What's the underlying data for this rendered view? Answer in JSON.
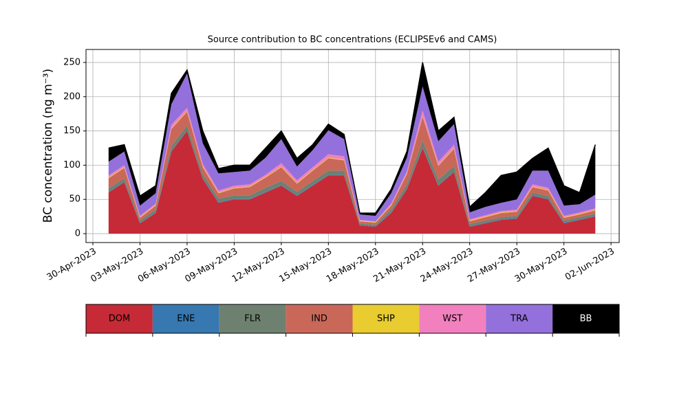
{
  "chart_data": {
    "type": "stacked_area",
    "title": "Source contribution to BC concentrations (ECLIPSEv6 and CAMS)",
    "y_label": "BC concentration (ng m⁻³)",
    "x": [
      "2023-05-01",
      "2023-05-02",
      "2023-05-03",
      "2023-05-04",
      "2023-05-05",
      "2023-05-06",
      "2023-05-07",
      "2023-05-08",
      "2023-05-09",
      "2023-05-10",
      "2023-05-11",
      "2023-05-12",
      "2023-05-13",
      "2023-05-14",
      "2023-05-15",
      "2023-05-16",
      "2023-05-17",
      "2023-05-18",
      "2023-05-19",
      "2023-05-20",
      "2023-05-21",
      "2023-05-22",
      "2023-05-23",
      "2023-05-24",
      "2023-05-25",
      "2023-05-26",
      "2023-05-27",
      "2023-05-28",
      "2023-05-29",
      "2023-05-30",
      "2023-05-31",
      "2023-06-01"
    ],
    "series": [
      {
        "name": "DOM",
        "color": "#c62a36",
        "values": [
          60,
          75,
          15,
          30,
          120,
          150,
          80,
          45,
          50,
          50,
          60,
          70,
          55,
          70,
          85,
          85,
          12,
          10,
          30,
          65,
          125,
          70,
          90,
          10,
          15,
          20,
          22,
          55,
          50,
          15,
          20,
          25
        ]
      },
      {
        "name": "ENE",
        "color": "#3778b0",
        "values": [
          1,
          1,
          1,
          1,
          1,
          1,
          1,
          1,
          1,
          1,
          1,
          1,
          1,
          1,
          1,
          1,
          1,
          1,
          1,
          1,
          1,
          1,
          1,
          1,
          1,
          1,
          1,
          1,
          1,
          1,
          1,
          1
        ]
      },
      {
        "name": "FLR",
        "color": "#6e8070",
        "values": [
          5,
          5,
          3,
          4,
          7,
          7,
          6,
          5,
          5,
          5,
          6,
          6,
          5,
          6,
          6,
          6,
          2,
          2,
          4,
          6,
          10,
          8,
          8,
          3,
          3,
          3,
          3,
          4,
          4,
          3,
          3,
          3
        ]
      },
      {
        "name": "IND",
        "color": "#c96858",
        "values": [
          15,
          15,
          4,
          6,
          25,
          20,
          10,
          8,
          10,
          12,
          15,
          20,
          12,
          15,
          18,
          15,
          3,
          3,
          6,
          15,
          35,
          20,
          25,
          4,
          5,
          6,
          6,
          8,
          8,
          4,
          4,
          5
        ]
      },
      {
        "name": "SHP",
        "color": "#e8cc30",
        "values": [
          1,
          1,
          1,
          1,
          1,
          1,
          1,
          1,
          1,
          1,
          1,
          1,
          1,
          1,
          1,
          1,
          1,
          1,
          1,
          1,
          1,
          1,
          1,
          1,
          1,
          1,
          1,
          1,
          1,
          1,
          1,
          1
        ]
      },
      {
        "name": "WST",
        "color": "#f280be",
        "values": [
          3,
          3,
          2,
          2,
          5,
          5,
          4,
          3,
          3,
          3,
          3,
          5,
          4,
          4,
          5,
          5,
          1,
          1,
          2,
          3,
          8,
          5,
          5,
          2,
          2,
          2,
          2,
          3,
          3,
          2,
          2,
          2
        ]
      },
      {
        "name": "TRA",
        "color": "#9370db",
        "values": [
          20,
          20,
          15,
          15,
          30,
          50,
          30,
          25,
          20,
          20,
          25,
          35,
          20,
          25,
          35,
          25,
          8,
          8,
          15,
          20,
          35,
          30,
          30,
          10,
          12,
          12,
          15,
          20,
          25,
          15,
          12,
          20
        ]
      },
      {
        "name": "BB",
        "color": "#000000",
        "values": [
          20,
          10,
          14,
          11,
          16,
          5,
          18,
          7,
          10,
          8,
          14,
          12,
          12,
          8,
          9,
          7,
          2,
          4,
          6,
          9,
          35,
          15,
          10,
          8,
          21,
          40,
          40,
          18,
          33,
          29,
          17,
          73
        ]
      }
    ],
    "xlim": [
      "2023-04-29T13:30",
      "2023-06-02T12:30"
    ],
    "xticks": [
      {
        "value": "2023-04-30",
        "label": "30-Apr-2023"
      },
      {
        "value": "2023-05-03",
        "label": "03-May-2023"
      },
      {
        "value": "2023-05-06",
        "label": "06-May-2023"
      },
      {
        "value": "2023-05-09",
        "label": "09-May-2023"
      },
      {
        "value": "2023-05-12",
        "label": "12-May-2023"
      },
      {
        "value": "2023-05-15",
        "label": "15-May-2023"
      },
      {
        "value": "2023-05-18",
        "label": "18-May-2023"
      },
      {
        "value": "2023-05-21",
        "label": "21-May-2023"
      },
      {
        "value": "2023-05-24",
        "label": "24-May-2023"
      },
      {
        "value": "2023-05-27",
        "label": "27-May-2023"
      },
      {
        "value": "2023-05-30",
        "label": "30-May-2023"
      },
      {
        "value": "2023-06-02",
        "label": "02-Jun-2023"
      }
    ],
    "ylim": [
      -13,
      269
    ],
    "yticks": [
      0,
      50,
      100,
      150,
      200,
      250
    ],
    "grid": true
  }
}
